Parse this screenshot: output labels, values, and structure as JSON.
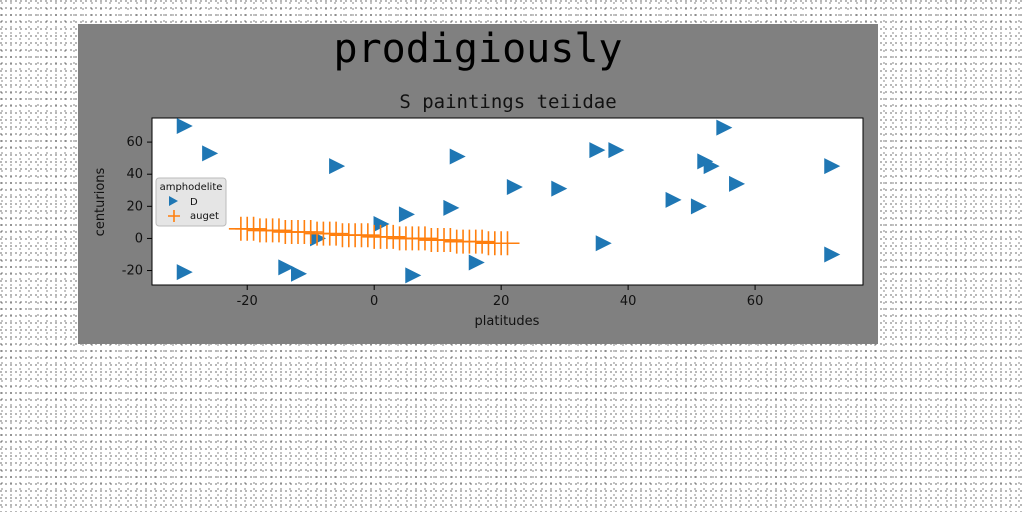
{
  "chart_data": {
    "type": "scatter",
    "suptitle": "prodigiously",
    "title": "S paintings teiidae",
    "xlabel": "platitudes",
    "ylabel": "centurions",
    "xlim": [
      -35,
      77
    ],
    "ylim": [
      -29,
      75
    ],
    "xticks": [
      -20,
      0,
      20,
      40,
      60
    ],
    "yticks": [
      -20,
      0,
      20,
      40,
      60
    ],
    "grid": false,
    "legend": {
      "title": "amphodelite",
      "placement": "center-left",
      "entries": [
        "D",
        "auget"
      ]
    },
    "colors": {
      "figure_bg": "#808080",
      "axes_bg": "#ffffff",
      "D": "#1f77b4",
      "auget": "#ff7f0e"
    },
    "series": [
      {
        "name": "D",
        "marker": "triangle-right",
        "x": [
          -30,
          -26,
          -6,
          13,
          22,
          29,
          35,
          38,
          55,
          52,
          53,
          57,
          72,
          51,
          47,
          12,
          5,
          1,
          -9,
          -14,
          -12,
          -30,
          6,
          16,
          36,
          72
        ],
        "y": [
          70,
          53,
          45,
          51,
          32,
          31,
          55,
          55,
          69,
          48,
          45,
          34,
          45,
          20,
          24,
          19,
          15,
          9,
          0,
          -18,
          -22,
          -21,
          -23,
          -15,
          -3,
          -10
        ]
      },
      {
        "name": "auget",
        "marker": "plus",
        "x": [
          -21,
          -20,
          -19,
          -18,
          -17,
          -16,
          -15,
          -14,
          -13,
          -12,
          -11,
          -10,
          -9,
          -8,
          -7,
          -6,
          -5,
          -4,
          -3,
          -2,
          -1,
          0,
          1,
          2,
          3,
          4,
          5,
          6,
          7,
          8,
          9,
          10,
          11,
          12,
          13,
          14,
          15,
          16,
          17,
          18,
          19,
          20,
          21
        ],
        "y": [
          6,
          6,
          6,
          5,
          5,
          5,
          5,
          4,
          4,
          4,
          4,
          4,
          3,
          3,
          3,
          3,
          2,
          2,
          2,
          2,
          2,
          1,
          1,
          1,
          1,
          0,
          0,
          0,
          0,
          0,
          -1,
          -1,
          -1,
          -1,
          -2,
          -2,
          -2,
          -2,
          -2,
          -3,
          -3,
          -3,
          -3
        ]
      }
    ]
  }
}
